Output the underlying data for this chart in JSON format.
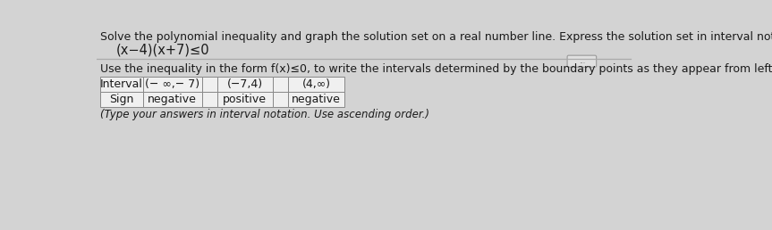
{
  "bg_color": "#d3d3d3",
  "title_line1": "Solve the polynomial inequality and graph the solution set on a real number line. Express the solution set in interval notati",
  "title_line2": "(x−4)(x+7)≤0",
  "instruction": "Use the inequality in the form f(x)≤0, to write the intervals determined by the boundary points as they appear from left to r",
  "row1_label": "Interval",
  "row2_label": "Sign",
  "col1_interval": "(− ∞,− 7)",
  "col1_sign": "negative",
  "col2_interval": "(−7,4)",
  "col2_sign": "positive",
  "col3_interval": "(4,∞)",
  "col3_sign": "negative",
  "footnote": "(Type your answers in interval notation. Use ascending order.)",
  "dots_button_text": "...",
  "font_size_title": 9.0,
  "font_size_eq": 10.5,
  "font_size_table": 9.0,
  "font_size_footnote": 8.5,
  "text_color": "#1a1a1a",
  "table_bg": "#f0f0f0",
  "table_border_color": "#888888",
  "separator_line_color": "#aaaaaa",
  "btn_color": "#e0e0e0",
  "btn_border": "#999999"
}
